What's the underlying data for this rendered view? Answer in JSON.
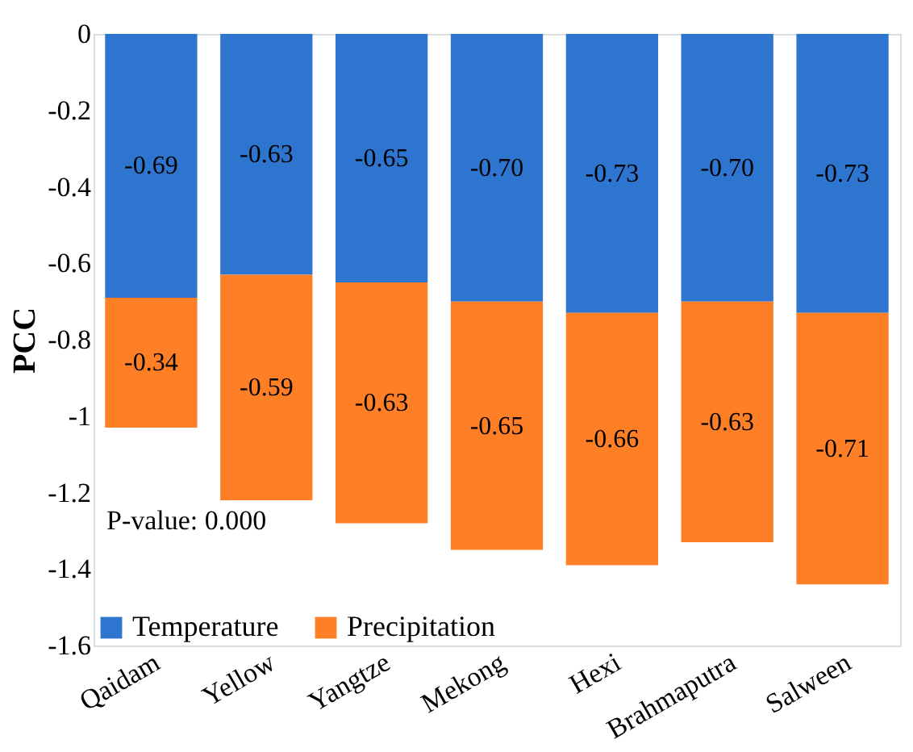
{
  "chart_data": {
    "type": "bar",
    "stacked": true,
    "ylabel": "PCC",
    "categories": [
      "Qaidam",
      "Yellow",
      "Yangtze",
      "Mekong",
      "Hexi",
      "Brahmaputra",
      "Salween"
    ],
    "series": [
      {
        "name": "Temperature",
        "color": "#2e75d0",
        "values": [
          -0.69,
          -0.63,
          -0.65,
          -0.7,
          -0.73,
          -0.7,
          -0.73
        ],
        "value_labels": [
          "-0.69",
          "-0.63",
          "-0.65",
          "-0.70",
          "-0.73",
          "-0.70",
          "-0.73"
        ]
      },
      {
        "name": "Precipitation",
        "color": "#ff7f27",
        "values": [
          -0.34,
          -0.59,
          -0.63,
          -0.65,
          -0.66,
          -0.63,
          -0.71
        ],
        "value_labels": [
          "-0.34",
          "-0.59",
          "-0.63",
          "-0.65",
          "-0.66",
          "-0.63",
          "-0.71"
        ]
      }
    ],
    "ylim": [
      -1.6,
      0
    ],
    "yticks": [
      0,
      -0.2,
      -0.4,
      -0.6,
      -0.8,
      -1,
      -1.2,
      -1.4,
      -1.6
    ],
    "grid": false,
    "legend": "bottom left",
    "annotations": [
      "P-value: 0.000"
    ]
  }
}
